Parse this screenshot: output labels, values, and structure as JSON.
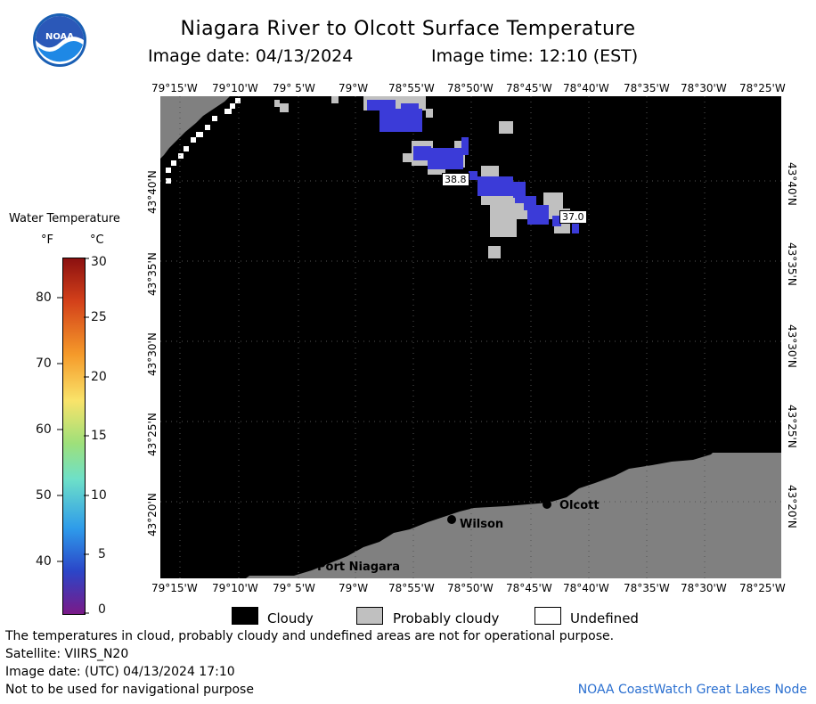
{
  "header": {
    "title": "Niagara River to Olcott Surface Temperature",
    "image_date": "Image date: 04/13/2024",
    "image_time": "Image time: 12:10 (EST)"
  },
  "logo": {
    "text": "NOAA"
  },
  "map": {
    "lon_labels": [
      "79°15'W",
      "79°10'W",
      "79° 5'W",
      "79°W",
      "78°55'W",
      "78°50'W",
      "78°45'W",
      "78°40'W",
      "78°35'W",
      "78°30'W",
      "78°25'W"
    ],
    "lat_labels": [
      "43°40'N",
      "43°35'N",
      "43°30'N",
      "43°25'N",
      "43°20'N"
    ],
    "places": {
      "olcott": "Olcott",
      "wilson": "Wilson",
      "port_niagara": "Port Niagara"
    },
    "temps": {
      "t1": "38.8",
      "t2": "37.0"
    },
    "colors": {
      "cloud": "#000000",
      "land": "#808080",
      "probably_cloudy": "#c0c0c0",
      "water_cold": "#3b3bd8"
    }
  },
  "legend": {
    "title": "Water Temperature",
    "unit_f": "°F",
    "unit_c": "°C",
    "f_ticks": [
      "80",
      "70",
      "60",
      "50",
      "40"
    ],
    "c_ticks": [
      "30",
      "25",
      "20",
      "15",
      "10",
      "5",
      "0"
    ]
  },
  "key": {
    "cloudy": "Cloudy",
    "probably_cloudy": "Probably cloudy",
    "undefined": "Undefined"
  },
  "notes": {
    "line1": "The temperatures in cloud, probably cloudy and undefined areas are not for operational purpose.",
    "line2": "Satellite: VIIRS_N20",
    "line3": "Image date: (UTC) 04/13/2024  17:10",
    "line4": "Not to be used for navigational purpose",
    "credit": "NOAA CoastWatch Great Lakes Node"
  }
}
